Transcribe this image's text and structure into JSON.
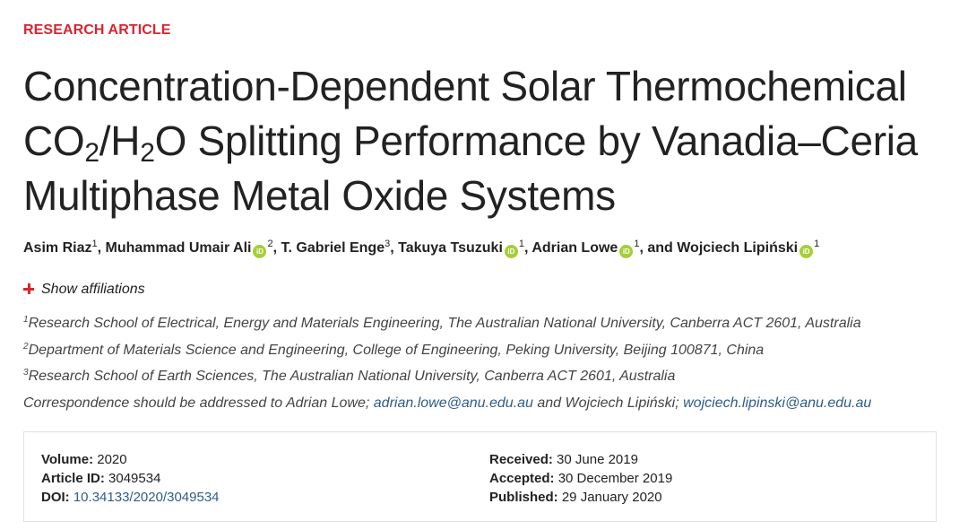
{
  "article_type": "RESEARCH ARTICLE",
  "title": {
    "line1": "Concentration-Dependent Solar Thermochemical",
    "line2_a": "CO",
    "line2_sub1": "2",
    "line2_b": "/H",
    "line2_sub2": "2",
    "line2_c": "O Splitting Performance by Vanadia–Ceria",
    "line3": "Multiphase Metal Oxide Systems"
  },
  "authors": [
    {
      "name": "Asim Riaz",
      "sup": "1",
      "orcid": false,
      "sep": ", "
    },
    {
      "name": "Muhammad Umair Ali",
      "sup": "2",
      "orcid": true,
      "sep": ", "
    },
    {
      "name": "T. Gabriel Enge",
      "sup": "3",
      "orcid": false,
      "sep": ", "
    },
    {
      "name": "Takuya Tsuzuki",
      "sup": "1",
      "orcid": true,
      "sep": ", "
    },
    {
      "name": "Adrian Lowe",
      "sup": "1",
      "orcid": true,
      "sep": ", and "
    },
    {
      "name": "Wojciech Lipiński",
      "sup": "1",
      "orcid": true,
      "sep": ""
    }
  ],
  "orcid_label": "iD",
  "show_affiliations": "Show affiliations",
  "affiliations": [
    {
      "sup": "1",
      "text": "Research School of Electrical, Energy and Materials Engineering, The Australian National University, Canberra ACT 2601, Australia"
    },
    {
      "sup": "2",
      "text": "Department of Materials Science and Engineering, College of Engineering, Peking University, Beijing 100871, China"
    },
    {
      "sup": "3",
      "text": "Research School of Earth Sciences, The Australian National University, Canberra ACT 2601, Australia"
    }
  ],
  "correspondence": {
    "prefix": "Correspondence should be addressed to Adrian Lowe; ",
    "email1": "adrian.lowe@anu.edu.au",
    "middle": " and Wojciech Lipiński; ",
    "email2": "wojciech.lipinski@anu.edu.au"
  },
  "info": {
    "volume_label": "Volume:",
    "volume": "2020",
    "article_id_label": "Article ID:",
    "article_id": "3049534",
    "doi_label": "DOI:",
    "doi": "10.34133/2020/3049534",
    "received_label": "Received:",
    "received": "30 June 2019",
    "accepted_label": "Accepted:",
    "accepted": "30 December 2019",
    "published_label": "Published:",
    "published": "29 January 2020"
  },
  "colors": {
    "accent": "#d8262f",
    "link": "#2e5c8a",
    "orcid": "#a6ce39"
  },
  "icons": {
    "expand": "plus-icon",
    "orcid": "orcid-icon"
  }
}
